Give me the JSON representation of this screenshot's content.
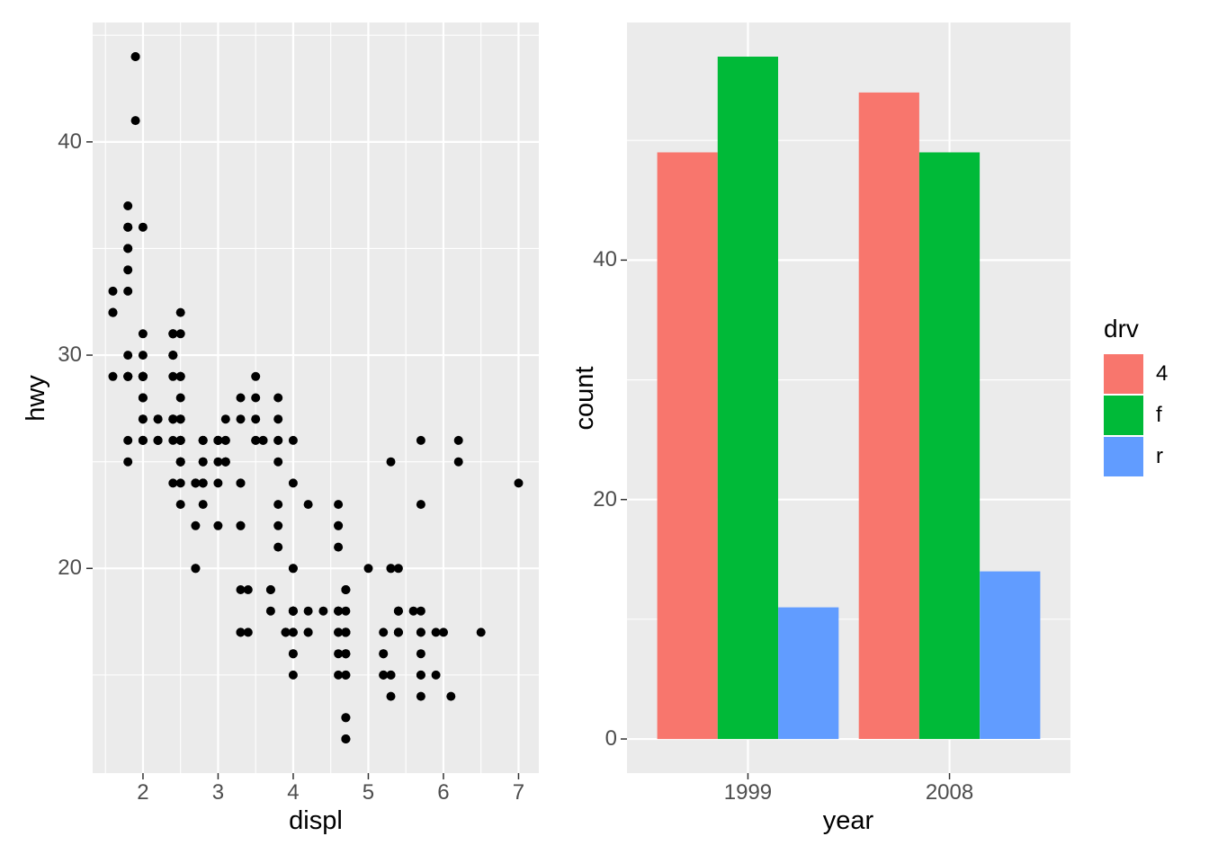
{
  "style": {
    "panel_background": "#EBEBEB",
    "grid_color": "#FFFFFF",
    "tick_mark_color": "#333333",
    "tick_label_color": "#4D4D4D",
    "point_color": "#000000"
  },
  "chart_data": [
    {
      "type": "scatter",
      "title": "",
      "xlabel": "displ",
      "ylabel": "hwy",
      "xlim": [
        1.33,
        7.27
      ],
      "ylim": [
        10.4,
        45.6
      ],
      "x_ticks": [
        2,
        3,
        4,
        5,
        6,
        7
      ],
      "y_ticks": [
        20,
        30,
        40
      ],
      "x_minor": [
        1.5,
        2.5,
        3.5,
        4.5,
        5.5,
        6.5
      ],
      "y_minor": [
        15,
        25,
        35,
        45
      ],
      "grid": true,
      "point_color": "#000000",
      "points": [
        [
          1.8,
          29
        ],
        [
          1.8,
          29
        ],
        [
          2,
          31
        ],
        [
          2,
          30
        ],
        [
          2.8,
          26
        ],
        [
          2.8,
          26
        ],
        [
          3.1,
          27
        ],
        [
          1.8,
          26
        ],
        [
          1.8,
          25
        ],
        [
          2,
          28
        ],
        [
          2,
          27
        ],
        [
          2.8,
          25
        ],
        [
          2.8,
          25
        ],
        [
          3.1,
          25
        ],
        [
          3.1,
          25
        ],
        [
          2.8,
          24
        ],
        [
          3.1,
          25
        ],
        [
          4.2,
          23
        ],
        [
          5.3,
          20
        ],
        [
          5.3,
          15
        ],
        [
          5.3,
          20
        ],
        [
          5.7,
          17
        ],
        [
          6,
          17
        ],
        [
          5.7,
          26
        ],
        [
          5.7,
          23
        ],
        [
          6.2,
          26
        ],
        [
          6.2,
          25
        ],
        [
          7,
          24
        ],
        [
          5.3,
          14
        ],
        [
          5.3,
          15
        ],
        [
          5.7,
          17
        ],
        [
          6.5,
          17
        ],
        [
          2.4,
          27
        ],
        [
          2.4,
          30
        ],
        [
          3.1,
          26
        ],
        [
          3.5,
          29
        ],
        [
          3.6,
          26
        ],
        [
          2.4,
          24
        ],
        [
          3,
          24
        ],
        [
          3.3,
          22
        ],
        [
          3.3,
          22
        ],
        [
          3.3,
          24
        ],
        [
          3.3,
          24
        ],
        [
          3.3,
          17
        ],
        [
          3.8,
          22
        ],
        [
          3.8,
          21
        ],
        [
          3.8,
          23
        ],
        [
          4,
          18
        ],
        [
          3.7,
          19
        ],
        [
          3.7,
          18
        ],
        [
          3.9,
          17
        ],
        [
          3.9,
          17
        ],
        [
          4.7,
          19
        ],
        [
          4.7,
          19
        ],
        [
          4.7,
          12
        ],
        [
          5.2,
          17
        ],
        [
          5.2,
          15
        ],
        [
          3.9,
          17
        ],
        [
          4.7,
          17
        ],
        [
          4.7,
          12
        ],
        [
          4.7,
          16
        ],
        [
          4.7,
          18
        ],
        [
          5.2,
          16
        ],
        [
          5.9,
          15
        ],
        [
          4.7,
          17
        ],
        [
          4.7,
          15
        ],
        [
          4.7,
          13
        ],
        [
          4.7,
          13
        ],
        [
          4.7,
          17
        ],
        [
          4.7,
          17
        ],
        [
          5.2,
          16
        ],
        [
          5.2,
          15
        ],
        [
          5.7,
          16
        ],
        [
          5.9,
          17
        ],
        [
          4.6,
          17
        ],
        [
          5.4,
          17
        ],
        [
          5.4,
          18
        ],
        [
          4,
          18
        ],
        [
          4,
          17
        ],
        [
          4,
          16
        ],
        [
          4,
          18
        ],
        [
          4.6,
          18
        ],
        [
          5,
          20
        ],
        [
          4.2,
          17
        ],
        [
          4.2,
          17
        ],
        [
          4.6,
          16
        ],
        [
          4.6,
          18
        ],
        [
          4.6,
          17
        ],
        [
          5.4,
          17
        ],
        [
          5.4,
          17
        ],
        [
          3.8,
          26
        ],
        [
          3.8,
          25
        ],
        [
          4,
          26
        ],
        [
          4,
          24
        ],
        [
          4.6,
          21
        ],
        [
          4.6,
          22
        ],
        [
          4.6,
          23
        ],
        [
          4.6,
          22
        ],
        [
          5.4,
          20
        ],
        [
          1.6,
          33
        ],
        [
          1.6,
          32
        ],
        [
          1.6,
          32
        ],
        [
          1.6,
          29
        ],
        [
          1.6,
          32
        ],
        [
          1.8,
          34
        ],
        [
          1.8,
          36
        ],
        [
          1.8,
          36
        ],
        [
          2,
          36
        ],
        [
          2.4,
          26
        ],
        [
          2.4,
          27
        ],
        [
          2.4,
          30
        ],
        [
          2.4,
          31
        ],
        [
          2.5,
          26
        ],
        [
          2.5,
          26
        ],
        [
          3.3,
          28
        ],
        [
          2,
          26
        ],
        [
          2,
          29
        ],
        [
          2,
          28
        ],
        [
          2,
          27
        ],
        [
          2.7,
          24
        ],
        [
          2.7,
          24
        ],
        [
          2.7,
          24
        ],
        [
          3,
          22
        ],
        [
          3.7,
          19
        ],
        [
          4,
          20
        ],
        [
          4.7,
          17
        ],
        [
          4.7,
          12
        ],
        [
          4.7,
          19
        ],
        [
          5.7,
          14
        ],
        [
          6.1,
          14
        ],
        [
          4,
          15
        ],
        [
          4.2,
          18
        ],
        [
          4.4,
          18
        ],
        [
          4.6,
          15
        ],
        [
          5.4,
          18
        ],
        [
          5.4,
          17
        ],
        [
          5.4,
          18
        ],
        [
          4,
          17
        ],
        [
          4,
          16
        ],
        [
          4,
          18
        ],
        [
          4.6,
          18
        ],
        [
          2.4,
          29
        ],
        [
          2.4,
          27
        ],
        [
          2.5,
          31
        ],
        [
          2.5,
          32
        ],
        [
          3.5,
          27
        ],
        [
          3.5,
          26
        ],
        [
          3,
          26
        ],
        [
          3,
          25
        ],
        [
          3.5,
          26
        ],
        [
          3.3,
          19
        ],
        [
          3.3,
          17
        ],
        [
          4,
          20
        ],
        [
          5.6,
          18
        ],
        [
          3.1,
          26
        ],
        [
          3.8,
          26
        ],
        [
          3.8,
          27
        ],
        [
          3.8,
          28
        ],
        [
          5.3,
          25
        ],
        [
          2.5,
          23
        ],
        [
          2.5,
          24
        ],
        [
          2.5,
          25
        ],
        [
          2.5,
          27
        ],
        [
          2.5,
          25
        ],
        [
          2.5,
          26
        ],
        [
          2.2,
          26
        ],
        [
          2.2,
          26
        ],
        [
          2.5,
          26
        ],
        [
          2.5,
          26
        ],
        [
          2.5,
          25
        ],
        [
          2.5,
          27
        ],
        [
          2.5,
          25
        ],
        [
          2.5,
          26
        ],
        [
          2.7,
          20
        ],
        [
          2.7,
          20
        ],
        [
          2.7,
          22
        ],
        [
          3.4,
          17
        ],
        [
          3.4,
          19
        ],
        [
          4,
          18
        ],
        [
          4.7,
          17
        ],
        [
          2.2,
          26
        ],
        [
          2.2,
          27
        ],
        [
          2.4,
          30
        ],
        [
          2.4,
          31
        ],
        [
          3,
          26
        ],
        [
          3,
          26
        ],
        [
          3.5,
          28
        ],
        [
          2.2,
          26
        ],
        [
          2.2,
          27
        ],
        [
          2.4,
          30
        ],
        [
          2.4,
          31
        ],
        [
          3,
          26
        ],
        [
          3,
          26
        ],
        [
          3.3,
          27
        ],
        [
          1.8,
          30
        ],
        [
          1.8,
          33
        ],
        [
          1.8,
          35
        ],
        [
          1.8,
          37
        ],
        [
          1.8,
          35
        ],
        [
          4.7,
          15
        ],
        [
          5.7,
          18
        ],
        [
          4,
          18
        ],
        [
          4.7,
          16
        ],
        [
          4.7,
          16
        ],
        [
          4.7,
          17
        ],
        [
          5.7,
          15
        ],
        [
          5.7,
          15
        ],
        [
          2,
          29
        ],
        [
          2,
          26
        ],
        [
          2,
          29
        ],
        [
          2,
          29
        ],
        [
          2.8,
          24
        ],
        [
          1.9,
          44
        ],
        [
          2,
          29
        ],
        [
          2,
          26
        ],
        [
          2,
          29
        ],
        [
          2,
          29
        ],
        [
          2.5,
          29
        ],
        [
          2.5,
          29
        ],
        [
          2.8,
          24
        ],
        [
          2.8,
          23
        ],
        [
          1.9,
          44
        ],
        [
          1.9,
          41
        ],
        [
          2,
          29
        ],
        [
          2,
          26
        ],
        [
          2.5,
          28
        ],
        [
          2.5,
          29
        ],
        [
          1.8,
          29
        ],
        [
          1.8,
          29
        ],
        [
          2,
          28
        ],
        [
          2,
          29
        ],
        [
          2.8,
          26
        ],
        [
          2.8,
          26
        ],
        [
          3.6,
          26
        ]
      ]
    },
    {
      "type": "bar",
      "title": "",
      "xlabel": "year",
      "ylabel": "count",
      "categories": [
        "1999",
        "2008"
      ],
      "series": [
        {
          "name": "4",
          "color": "#F8766D",
          "values": [
            49,
            54
          ]
        },
        {
          "name": "f",
          "color": "#00BA38",
          "values": [
            57,
            49
          ]
        },
        {
          "name": "r",
          "color": "#619CFF",
          "values": [
            11,
            14
          ]
        }
      ],
      "ylim": [
        -2.85,
        59.85
      ],
      "y_ticks": [
        0,
        20,
        40
      ],
      "y_minor": [
        10,
        30,
        50
      ],
      "grid": true,
      "legend_title": "drv",
      "legend_position": "right"
    }
  ]
}
